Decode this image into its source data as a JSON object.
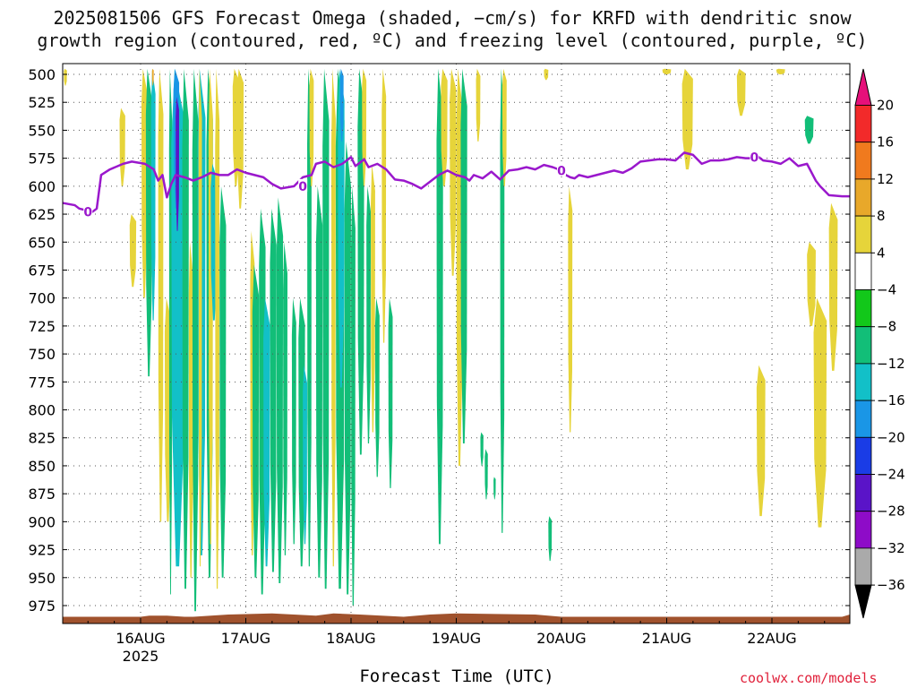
{
  "chart_data": {
    "type": "heatmap",
    "title": "2025081506 GFS Forecast Omega (shaded, −cm/s) for KRFD with dendritic snow",
    "subtitle": "growth region (contoured, red, ºC) and freezing level (contoured, purple, ºC)",
    "xlabel": "Forecast Time (UTC)",
    "ylabel": "",
    "credit": "coolwx.com/models",
    "x_ticks": [
      {
        "t": 0,
        "label": "16AUG",
        "sub": "2025"
      },
      {
        "t": 24,
        "label": "17AUG",
        "sub": ""
      },
      {
        "t": 48,
        "label": "18AUG",
        "sub": ""
      },
      {
        "t": 72,
        "label": "19AUG",
        "sub": ""
      },
      {
        "t": 96,
        "label": "20AUG",
        "sub": ""
      },
      {
        "t": 120,
        "label": "21AUG",
        "sub": ""
      },
      {
        "t": 144,
        "label": "22AUG",
        "sub": ""
      }
    ],
    "x_range_hours_from_16AUG00": [
      -18,
      162
    ],
    "y_ticks": [
      500,
      525,
      550,
      575,
      600,
      625,
      650,
      675,
      700,
      725,
      750,
      775,
      800,
      825,
      850,
      875,
      900,
      925,
      950,
      975
    ],
    "y_range_hPa": [
      495,
      990
    ],
    "grid": true,
    "colorbar": {
      "labels": [
        "20",
        "16",
        "12",
        "8",
        "4",
        "−4",
        "−8",
        "−12",
        "−16",
        "−20",
        "−24",
        "−28",
        "−32",
        "−36"
      ],
      "colors": [
        "#ee1c78",
        "#f22a2a",
        "#f07a1e",
        "#e8a82a",
        "#e6d43a",
        "#ffffff",
        "#12c81a",
        "#12be78",
        "#12c0c8",
        "#1a96e6",
        "#1a3ce6",
        "#5a14c8",
        "#8e0cc8",
        "#aaaaaa",
        "#000000"
      ],
      "top_triangle_color": "#e6107a",
      "bottom_triangle_color": "#000000"
    },
    "freezing_level": {
      "color": "#9a18cc",
      "label": "0",
      "points": [
        [
          -18,
          615
        ],
        [
          -15,
          617
        ],
        [
          -14,
          620
        ],
        [
          -12,
          622
        ],
        [
          -11,
          623
        ],
        [
          -10,
          620
        ],
        [
          -9,
          590
        ],
        [
          -7,
          585
        ],
        [
          -4,
          580
        ],
        [
          -2,
          578
        ],
        [
          1,
          580
        ],
        [
          3,
          585
        ],
        [
          4,
          595
        ],
        [
          5,
          590
        ],
        [
          6,
          610
        ],
        [
          7,
          598
        ],
        [
          8,
          590
        ],
        [
          10,
          592
        ],
        [
          12,
          595
        ],
        [
          14,
          592
        ],
        [
          16,
          588
        ],
        [
          18,
          590
        ],
        [
          20,
          590
        ],
        [
          22,
          585
        ],
        [
          24,
          588
        ],
        [
          26,
          590
        ],
        [
          28,
          592
        ],
        [
          30,
          598
        ],
        [
          32,
          602
        ],
        [
          35,
          600
        ],
        [
          37,
          592
        ],
        [
          39,
          590
        ],
        [
          40,
          580
        ],
        [
          42,
          578
        ],
        [
          44,
          583
        ],
        [
          46,
          580
        ],
        [
          48,
          574
        ],
        [
          49,
          582
        ],
        [
          51,
          576
        ],
        [
          52,
          583
        ],
        [
          54,
          580
        ],
        [
          56,
          585
        ],
        [
          58,
          594
        ],
        [
          60,
          595
        ],
        [
          62,
          598
        ],
        [
          64,
          602
        ],
        [
          66,
          596
        ],
        [
          68,
          590
        ],
        [
          70,
          586
        ],
        [
          72,
          590
        ],
        [
          74,
          592
        ],
        [
          75,
          595
        ],
        [
          76,
          590
        ],
        [
          78,
          593
        ],
        [
          80,
          587
        ],
        [
          82,
          594
        ],
        [
          84,
          586
        ],
        [
          86,
          585
        ],
        [
          88,
          583
        ],
        [
          90,
          585
        ],
        [
          92,
          581
        ],
        [
          94,
          583
        ],
        [
          96,
          586
        ],
        [
          97,
          590
        ],
        [
          98,
          592
        ],
        [
          99,
          593
        ],
        [
          100,
          590
        ],
        [
          102,
          592
        ],
        [
          104,
          590
        ],
        [
          106,
          588
        ],
        [
          108,
          586
        ],
        [
          110,
          588
        ],
        [
          112,
          584
        ],
        [
          114,
          578
        ],
        [
          118,
          576
        ],
        [
          120,
          576
        ],
        [
          122,
          577
        ],
        [
          124,
          570
        ],
        [
          126,
          572
        ],
        [
          128,
          580
        ],
        [
          130,
          577
        ],
        [
          132,
          577
        ],
        [
          134,
          576
        ],
        [
          136,
          574
        ],
        [
          138,
          575
        ],
        [
          140,
          575
        ],
        [
          141,
          574
        ],
        [
          142,
          577
        ],
        [
          144,
          578
        ],
        [
          146,
          580
        ],
        [
          148,
          575
        ],
        [
          150,
          582
        ],
        [
          152,
          580
        ],
        [
          154,
          595
        ],
        [
          155,
          600
        ],
        [
          157,
          608
        ],
        [
          160,
          609
        ],
        [
          162,
          609
        ]
      ],
      "label_points": [
        [
          -12,
          623
        ],
        [
          37,
          600
        ],
        [
          96,
          586
        ],
        [
          140,
          574
        ]
      ]
    },
    "omega_shading_bands": [
      {
        "value": 6,
        "t": [
          -17.5,
          -16.8
        ],
        "p": [
          495,
          510
        ]
      },
      {
        "value": 6,
        "t": [
          -4.8,
          -3.5
        ],
        "p": [
          530,
          600
        ]
      },
      {
        "value": 6,
        "t": [
          -2.5,
          -1.0
        ],
        "p": [
          625,
          690
        ]
      },
      {
        "value": 6,
        "t": [
          0.2,
          1.5
        ],
        "p": [
          495,
          700
        ]
      },
      {
        "value": -8,
        "t": [
          1.2,
          2.6
        ],
        "p": [
          495,
          770
        ]
      },
      {
        "value": -12,
        "t": [
          2.4,
          3.4
        ],
        "p": [
          495,
          720
        ]
      },
      {
        "value": 10,
        "t": [
          2.6,
          3.0
        ],
        "p": [
          495,
          510
        ]
      },
      {
        "value": 6,
        "t": [
          4.0,
          5.2
        ],
        "p": [
          495,
          900
        ]
      },
      {
        "value": 6,
        "t": [
          5.5,
          7.0
        ],
        "p": [
          700,
          900
        ]
      },
      {
        "value": -8,
        "t": [
          6.5,
          7.2
        ],
        "p": [
          495,
          965
        ]
      },
      {
        "value": -12,
        "t": [
          7.0,
          10.0
        ],
        "p": [
          495,
          940
        ]
      },
      {
        "value": -16,
        "t": [
          7.5,
          8.8
        ],
        "p": [
          495,
          620
        ]
      },
      {
        "value": -24,
        "t": [
          8.0,
          8.8
        ],
        "p": [
          520,
          640
        ]
      },
      {
        "value": -8,
        "t": [
          9.5,
          11.0
        ],
        "p": [
          495,
          960
        ]
      },
      {
        "value": 6,
        "t": [
          11.0,
          12.0
        ],
        "p": [
          650,
          950
        ]
      },
      {
        "value": -8,
        "t": [
          11.8,
          13.2
        ],
        "p": [
          495,
          980
        ]
      },
      {
        "value": -12,
        "t": [
          13.0,
          14.8
        ],
        "p": [
          495,
          930
        ]
      },
      {
        "value": 6,
        "t": [
          13.2,
          14.0
        ],
        "p": [
          495,
          940
        ]
      },
      {
        "value": -8,
        "t": [
          15.0,
          16.5
        ],
        "p": [
          495,
          950
        ]
      },
      {
        "value": 6,
        "t": [
          15.5,
          16.5
        ],
        "p": [
          495,
          920
        ]
      },
      {
        "value": -12,
        "t": [
          16.0,
          17.5
        ],
        "p": [
          580,
          720
        ]
      },
      {
        "value": 6,
        "t": [
          17.0,
          18.0
        ],
        "p": [
          495,
          960
        ]
      },
      {
        "value": -8,
        "t": [
          18.0,
          19.5
        ],
        "p": [
          600,
          950
        ]
      },
      {
        "value": 6,
        "t": [
          21.0,
          22.5
        ],
        "p": [
          495,
          600
        ]
      },
      {
        "value": 6,
        "t": [
          22.0,
          23.5
        ],
        "p": [
          495,
          620
        ]
      },
      {
        "value": 6,
        "t": [
          25.0,
          26.0
        ],
        "p": [
          640,
          930
        ]
      },
      {
        "value": -8,
        "t": [
          25.5,
          27.0
        ],
        "p": [
          670,
          950
        ]
      },
      {
        "value": -8,
        "t": [
          27.0,
          28.5
        ],
        "p": [
          620,
          965
        ]
      },
      {
        "value": -12,
        "t": [
          28.0,
          29.5
        ],
        "p": [
          700,
          940
        ]
      },
      {
        "value": -8,
        "t": [
          29.5,
          31.0
        ],
        "p": [
          620,
          945
        ]
      },
      {
        "value": -8,
        "t": [
          31.0,
          32.5
        ],
        "p": [
          610,
          955
        ]
      },
      {
        "value": -8,
        "t": [
          32.5,
          33.5
        ],
        "p": [
          650,
          930
        ]
      },
      {
        "value": -8,
        "t": [
          34.5,
          35.5
        ],
        "p": [
          700,
          920
        ]
      },
      {
        "value": -8,
        "t": [
          36.0,
          37.5
        ],
        "p": [
          700,
          940
        ]
      },
      {
        "value": -12,
        "t": [
          37.0,
          38.0
        ],
        "p": [
          760,
          920
        ]
      },
      {
        "value": -8,
        "t": [
          38.0,
          39.0
        ],
        "p": [
          495,
          940
        ]
      },
      {
        "value": 6,
        "t": [
          38.5,
          39.5
        ],
        "p": [
          495,
          600
        ]
      },
      {
        "value": -8,
        "t": [
          40.0,
          41.5
        ],
        "p": [
          600,
          950
        ]
      },
      {
        "value": -8,
        "t": [
          41.5,
          43.0
        ],
        "p": [
          495,
          960
        ]
      },
      {
        "value": 6,
        "t": [
          43.5,
          44.5
        ],
        "p": [
          495,
          940
        ]
      },
      {
        "value": -8,
        "t": [
          44.5,
          46.5
        ],
        "p": [
          495,
          960
        ]
      },
      {
        "value": -12,
        "t": [
          45.0,
          46.5
        ],
        "p": [
          495,
          780
        ]
      },
      {
        "value": -16,
        "t": [
          45.5,
          46.3
        ],
        "p": [
          495,
          560
        ]
      },
      {
        "value": -8,
        "t": [
          46.5,
          48.0
        ],
        "p": [
          560,
          965
        ]
      },
      {
        "value": -8,
        "t": [
          48.0,
          49.0
        ],
        "p": [
          600,
          975
        ]
      },
      {
        "value": -8,
        "t": [
          49.5,
          51.0
        ],
        "p": [
          495,
          840
        ]
      },
      {
        "value": 6,
        "t": [
          50.5,
          51.5
        ],
        "p": [
          495,
          600
        ]
      },
      {
        "value": -8,
        "t": [
          51.5,
          52.5
        ],
        "p": [
          600,
          830
        ]
      },
      {
        "value": 6,
        "t": [
          52.5,
          53.5
        ],
        "p": [
          580,
          820
        ]
      },
      {
        "value": -8,
        "t": [
          53.5,
          54.5
        ],
        "p": [
          700,
          860
        ]
      },
      {
        "value": 6,
        "t": [
          55.0,
          56.0
        ],
        "p": [
          495,
          740
        ]
      },
      {
        "value": -8,
        "t": [
          56.5,
          57.5
        ],
        "p": [
          700,
          870
        ]
      },
      {
        "value": -8,
        "t": [
          67.5,
          69.0
        ],
        "p": [
          495,
          920
        ]
      },
      {
        "value": 6,
        "t": [
          68.5,
          70.0
        ],
        "p": [
          495,
          600
        ]
      },
      {
        "value": 6,
        "t": [
          70.5,
          72.0
        ],
        "p": [
          495,
          680
        ]
      },
      {
        "value": 6,
        "t": [
          72.0,
          73.5
        ],
        "p": [
          495,
          850
        ]
      },
      {
        "value": -8,
        "t": [
          73.0,
          74.5
        ],
        "p": [
          495,
          830
        ]
      },
      {
        "value": 6,
        "t": [
          76.5,
          77.5
        ],
        "p": [
          495,
          560
        ]
      },
      {
        "value": -8,
        "t": [
          77.5,
          78.2
        ],
        "p": [
          820,
          850
        ]
      },
      {
        "value": -8,
        "t": [
          78.5,
          79.2
        ],
        "p": [
          835,
          880
        ]
      },
      {
        "value": -8,
        "t": [
          80.5,
          81.0
        ],
        "p": [
          860,
          880
        ]
      },
      {
        "value": -8,
        "t": [
          82.0,
          83.0
        ],
        "p": [
          495,
          910
        ]
      },
      {
        "value": 6,
        "t": [
          82.5,
          83.5
        ],
        "p": [
          495,
          600
        ]
      },
      {
        "value": 6,
        "t": [
          92.0,
          93.0
        ],
        "p": [
          495,
          505
        ]
      },
      {
        "value": -8,
        "t": [
          93.0,
          93.8
        ],
        "p": [
          895,
          935
        ]
      },
      {
        "value": 6,
        "t": [
          97.5,
          98.5
        ],
        "p": [
          600,
          820
        ]
      },
      {
        "value": 6,
        "t": [
          119.0,
          121.0
        ],
        "p": [
          495,
          500
        ]
      },
      {
        "value": 6,
        "t": [
          123.5,
          126.0
        ],
        "p": [
          495,
          585
        ]
      },
      {
        "value": 6,
        "t": [
          136.0,
          138.0
        ],
        "p": [
          495,
          537
        ]
      },
      {
        "value": 6,
        "t": [
          140.5,
          142.5
        ],
        "p": [
          760,
          895
        ]
      },
      {
        "value": 6,
        "t": [
          145.0,
          147.0
        ],
        "p": [
          495,
          500
        ]
      },
      {
        "value": -8,
        "t": [
          151.5,
          153.5
        ],
        "p": [
          537,
          562
        ]
      },
      {
        "value": 6,
        "t": [
          152.0,
          154.0
        ],
        "p": [
          650,
          725
        ]
      },
      {
        "value": 6,
        "t": [
          153.5,
          156.5
        ],
        "p": [
          700,
          905
        ]
      },
      {
        "value": 6,
        "t": [
          157.0,
          159.0
        ],
        "p": [
          615,
          765
        ]
      }
    ],
    "surface_terrain": {
      "color": "#a0522d",
      "points": [
        [
          -18,
          985
        ],
        [
          0,
          985
        ],
        [
          2,
          984
        ],
        [
          6,
          984
        ],
        [
          10,
          985
        ],
        [
          12,
          985
        ],
        [
          20,
          983
        ],
        [
          30,
          982
        ],
        [
          40,
          984
        ],
        [
          44,
          982
        ],
        [
          50,
          983
        ],
        [
          60,
          985
        ],
        [
          66,
          983
        ],
        [
          72,
          982
        ],
        [
          90,
          983
        ],
        [
          96,
          985
        ],
        [
          160,
          985
        ],
        [
          162,
          983
        ]
      ]
    }
  }
}
